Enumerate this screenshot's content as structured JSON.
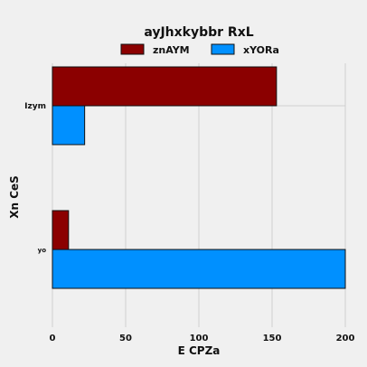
{
  "chart_data": {
    "type": "bar",
    "orientation": "horizontal",
    "title": "ayJhxkybbr RxL",
    "xlabel": "E CPZa",
    "ylabel": "Xn CeS",
    "categories": [
      "yo",
      "Izym"
    ],
    "series": [
      {
        "name": "znAYM",
        "color": "#8b0000",
        "values": [
          11,
          153
        ]
      },
      {
        "name": "xYORa",
        "color": "#0090ff",
        "values": [
          200,
          22
        ]
      }
    ],
    "xlim": [
      0,
      200
    ],
    "xticks": [
      0,
      50,
      100,
      150,
      200
    ],
    "grid": true,
    "legend_position": "top-center"
  }
}
